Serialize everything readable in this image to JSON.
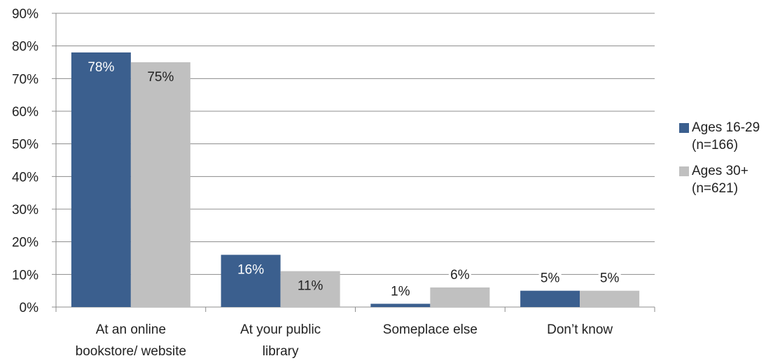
{
  "chart_data": {
    "type": "bar",
    "categories": [
      [
        "At an online",
        "bookstore/ website"
      ],
      [
        "At your public",
        "library"
      ],
      [
        "Someplace else"
      ],
      [
        "Don’t know"
      ]
    ],
    "series": [
      {
        "name": "Ages 16-29 (n=166)",
        "values": [
          78,
          16,
          1,
          5
        ],
        "color": "#3b5f8e",
        "label_color": "#ffffff"
      },
      {
        "name": "Ages 30+ (n=621)",
        "values": [
          75,
          11,
          6,
          5
        ],
        "color": "#c0c0c0",
        "label_color": "#222222"
      }
    ],
    "yticks": [
      "0%",
      "10%",
      "20%",
      "30%",
      "40%",
      "50%",
      "60%",
      "70%",
      "80%",
      "90%"
    ],
    "ylim": [
      0,
      90
    ],
    "grid": true,
    "legend_position": "right",
    "value_suffix": "%"
  },
  "legend": {
    "series_1_label": "Ages 16-29 (n=166)",
    "series_2_label": "Ages 30+ (n=621)"
  }
}
